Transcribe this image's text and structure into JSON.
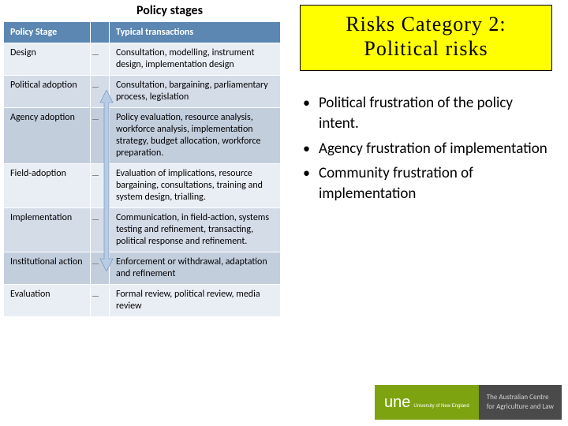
{
  "left": {
    "title": "Policy stages",
    "headers": [
      "Policy Stage",
      "",
      "Typical transactions"
    ],
    "rows": [
      {
        "stage": "Design",
        "trans": "Consultation, modelling, instrument design, implementation design",
        "shade": "row-light"
      },
      {
        "stage": "Political adoption",
        "trans": "Consultation, bargaining, parliamentary process, legislation",
        "shade": "row-mid"
      },
      {
        "stage": "Agency adoption",
        "trans": "Policy evaluation, resource analysis, workforce analysis, implementation strategy, budget allocation, workforce preparation.",
        "shade": "row-dark"
      },
      {
        "stage": "Field-adoption",
        "trans": "Evaluation of implications, resource bargaining, consultations, training and system design, trialling.",
        "shade": "row-light"
      },
      {
        "stage": "Implementation",
        "trans": "Communication, in field-action, systems testing and refinement, transacting, political response and refinement.",
        "shade": "row-mid"
      },
      {
        "stage": "Institutional action",
        "trans": "Enforcement or withdrawal, adaptation and refinement",
        "shade": "row-dark"
      },
      {
        "stage": "Evaluation",
        "trans": "Formal review, political review, media review",
        "shade": "row-light"
      }
    ],
    "arrow_color": "#b8cce4"
  },
  "right": {
    "title_line1": "Risks Category 2:",
    "title_line2": "Political risks",
    "bullets": [
      "Political frustration of the policy intent.",
      "Agency frustration of implementation",
      "Community frustration of implementation"
    ]
  },
  "footer": {
    "logo": "une",
    "logo_sub": "University of New England",
    "text_line1": "The Australian Centre",
    "text_line2": "for Agriculture and Law"
  }
}
